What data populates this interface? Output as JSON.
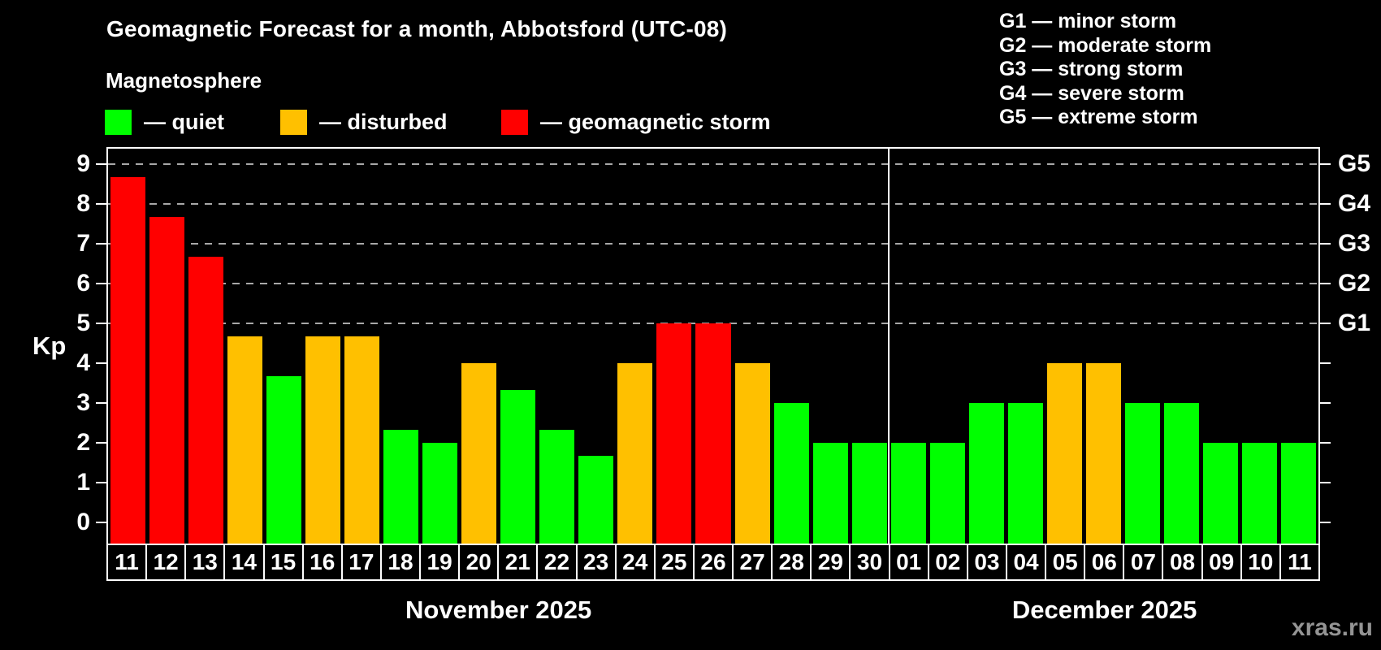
{
  "title": "Geomagnetic Forecast for a month, Abbotsford (UTC-08)",
  "subtitle": "Magnetosphere",
  "watermark": "xras.ru",
  "legend": {
    "items": [
      {
        "status": "quiet",
        "label": "— quiet",
        "color": "#00ff00"
      },
      {
        "status": "disturbed",
        "label": "— disturbed",
        "color": "#ffc000"
      },
      {
        "status": "storm",
        "label": "— geomagnetic storm",
        "color": "#ff0000"
      }
    ]
  },
  "g_legend": {
    "lines": [
      "G1 — minor storm",
      "G2 — moderate storm",
      "G3 — strong storm",
      "G4 — severe storm",
      "G5 — extreme storm"
    ]
  },
  "axis": {
    "ylabel": "Kp",
    "yticks": [
      0,
      1,
      2,
      3,
      4,
      5,
      6,
      7,
      8,
      9
    ],
    "right_scale": [
      {
        "label": "G5",
        "kp": 9
      },
      {
        "label": "G4",
        "kp": 8
      },
      {
        "label": "G3",
        "kp": 7
      },
      {
        "label": "G2",
        "kp": 6
      },
      {
        "label": "G1",
        "kp": 5
      }
    ],
    "gridlines": [
      5,
      6,
      7,
      8,
      9
    ]
  },
  "months": [
    {
      "label": "November 2025",
      "days": 20
    },
    {
      "label": "December 2025",
      "days": 11
    }
  ],
  "colors": {
    "quiet": "#00ff00",
    "disturbed": "#ffc000",
    "storm": "#ff0000",
    "grid": "#a8a8a8",
    "axis": "#ffffff",
    "text": "#ffffff",
    "watermark": "#949494",
    "background": "#000000"
  },
  "chart_data": {
    "type": "bar",
    "title": "Geomagnetic Forecast for a month, Abbotsford (UTC-08)",
    "xlabel": "",
    "ylabel": "Kp",
    "ylim": [
      0,
      9
    ],
    "grid_levels": [
      5,
      6,
      7,
      8,
      9
    ],
    "g_scale_mapping": {
      "G1": 5,
      "G2": 6,
      "G3": 7,
      "G4": 8,
      "G5": 9
    },
    "legend_position": "top",
    "bars": [
      {
        "month": "November 2025",
        "day": "11",
        "kp": 8.67,
        "status": "storm"
      },
      {
        "month": "November 2025",
        "day": "12",
        "kp": 7.67,
        "status": "storm"
      },
      {
        "month": "November 2025",
        "day": "13",
        "kp": 6.67,
        "status": "storm"
      },
      {
        "month": "November 2025",
        "day": "14",
        "kp": 4.67,
        "status": "disturbed"
      },
      {
        "month": "November 2025",
        "day": "15",
        "kp": 3.67,
        "status": "quiet"
      },
      {
        "month": "November 2025",
        "day": "16",
        "kp": 4.67,
        "status": "disturbed"
      },
      {
        "month": "November 2025",
        "day": "17",
        "kp": 4.67,
        "status": "disturbed"
      },
      {
        "month": "November 2025",
        "day": "18",
        "kp": 2.33,
        "status": "quiet"
      },
      {
        "month": "November 2025",
        "day": "19",
        "kp": 2.0,
        "status": "quiet"
      },
      {
        "month": "November 2025",
        "day": "20",
        "kp": 4.0,
        "status": "disturbed"
      },
      {
        "month": "November 2025",
        "day": "21",
        "kp": 3.33,
        "status": "quiet"
      },
      {
        "month": "November 2025",
        "day": "22",
        "kp": 2.33,
        "status": "quiet"
      },
      {
        "month": "November 2025",
        "day": "23",
        "kp": 1.67,
        "status": "quiet"
      },
      {
        "month": "November 2025",
        "day": "24",
        "kp": 4.0,
        "status": "disturbed"
      },
      {
        "month": "November 2025",
        "day": "25",
        "kp": 5.0,
        "status": "storm"
      },
      {
        "month": "November 2025",
        "day": "26",
        "kp": 5.0,
        "status": "storm"
      },
      {
        "month": "November 2025",
        "day": "27",
        "kp": 4.0,
        "status": "disturbed"
      },
      {
        "month": "November 2025",
        "day": "28",
        "kp": 3.0,
        "status": "quiet"
      },
      {
        "month": "November 2025",
        "day": "29",
        "kp": 2.0,
        "status": "quiet"
      },
      {
        "month": "November 2025",
        "day": "30",
        "kp": 2.0,
        "status": "quiet"
      },
      {
        "month": "December 2025",
        "day": "01",
        "kp": 2.0,
        "status": "quiet"
      },
      {
        "month": "December 2025",
        "day": "02",
        "kp": 2.0,
        "status": "quiet"
      },
      {
        "month": "December 2025",
        "day": "03",
        "kp": 3.0,
        "status": "quiet"
      },
      {
        "month": "December 2025",
        "day": "04",
        "kp": 3.0,
        "status": "quiet"
      },
      {
        "month": "December 2025",
        "day": "05",
        "kp": 4.0,
        "status": "disturbed"
      },
      {
        "month": "December 2025",
        "day": "06",
        "kp": 4.0,
        "status": "disturbed"
      },
      {
        "month": "December 2025",
        "day": "07",
        "kp": 3.0,
        "status": "quiet"
      },
      {
        "month": "December 2025",
        "day": "08",
        "kp": 3.0,
        "status": "quiet"
      },
      {
        "month": "December 2025",
        "day": "09",
        "kp": 2.0,
        "status": "quiet"
      },
      {
        "month": "December 2025",
        "day": "10",
        "kp": 2.0,
        "status": "quiet"
      },
      {
        "month": "December 2025",
        "day": "11",
        "kp": 2.0,
        "status": "quiet"
      }
    ]
  }
}
